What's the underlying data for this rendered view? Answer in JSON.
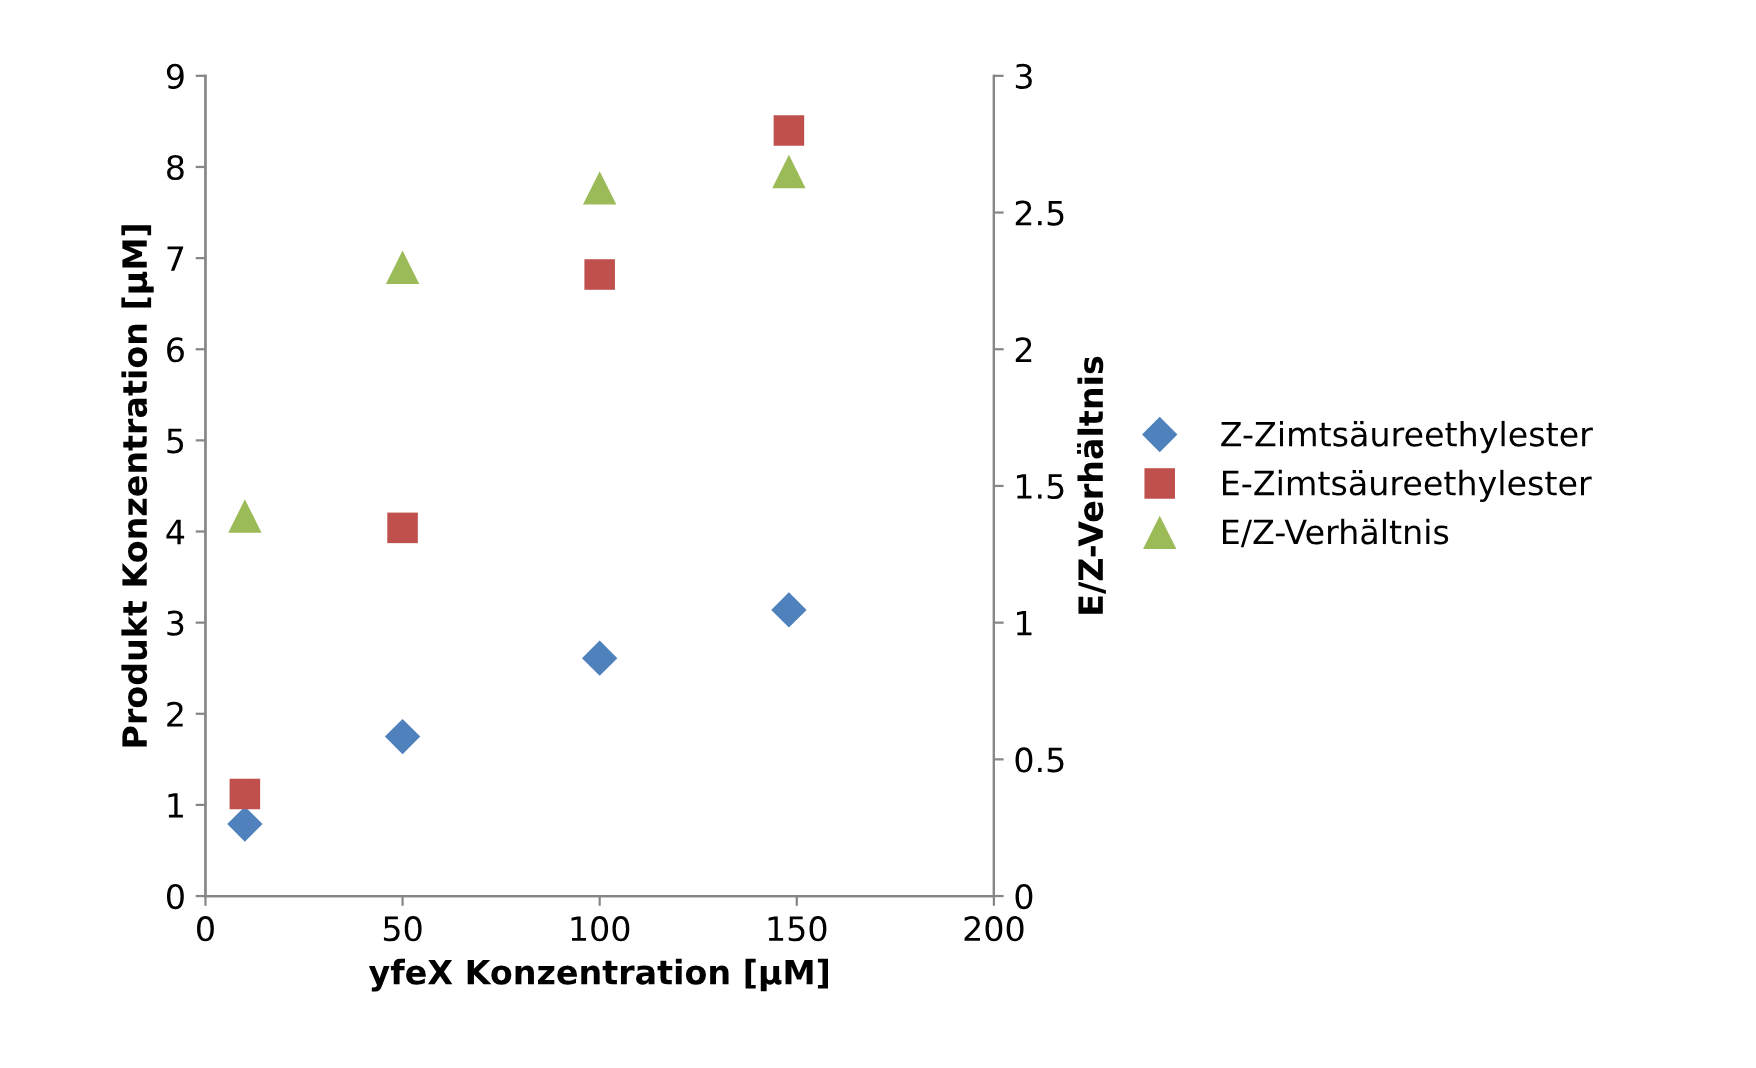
{
  "chart_data": {
    "type": "scatter",
    "xlabel": "yfeX Konzentration [µM]",
    "ylabel": "Produkt Konzentration [µM]",
    "y2label": "E/Z-Verhältnis",
    "x": [
      10,
      50,
      100,
      148
    ],
    "xlim": [
      0,
      200
    ],
    "xticks": [
      0,
      50,
      100,
      150,
      200
    ],
    "ylim": [
      0,
      9
    ],
    "yticks": [
      0,
      1,
      2,
      3,
      4,
      5,
      6,
      7,
      8,
      9
    ],
    "y2lim": [
      0,
      3
    ],
    "y2ticks": [
      0,
      0.5,
      1,
      1.5,
      2,
      2.5,
      3
    ],
    "grid": false,
    "legend": "right",
    "series": [
      {
        "name": "Z-Zimtsäureethylester",
        "color": "#4f81bd",
        "marker": "diamond",
        "values": [
          0.79,
          1.75,
          2.61,
          3.14
        ]
      },
      {
        "name": "E-Zimtsäureethylester",
        "color": "#c0504d",
        "marker": "square",
        "values": [
          1.12,
          4.04,
          6.82,
          8.4
        ]
      },
      {
        "name": "E/Z-Verhältnis",
        "color": "#9bbb59",
        "marker": "triangle",
        "axis": "y2",
        "values": [
          1.39,
          2.3,
          2.59,
          2.65
        ]
      }
    ]
  }
}
